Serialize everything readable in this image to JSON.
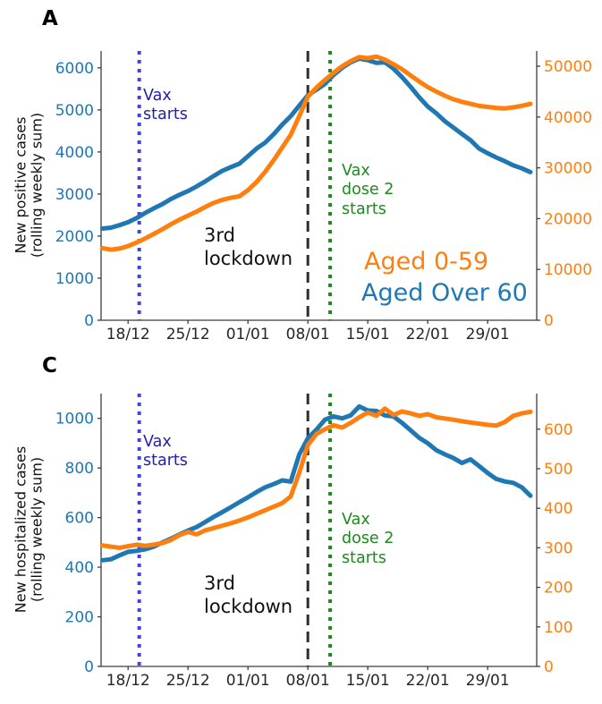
{
  "colors": {
    "series_blue": "#1f77b4",
    "series_orange": "#ff7f0e",
    "vax_line": "#4444e0",
    "vax_text": "#2222aa",
    "lockdown_line": "#2d2d2d",
    "lockdown_text": "#111111",
    "dose2_green": "#1d8a1d",
    "axis": "#3c3c3c",
    "xtick_text": "#262626"
  },
  "panels": [
    {
      "label": "A",
      "ylabel": "New positive cases\n(rolling weekly sum)",
      "annotations": {
        "vax_starts": "Vax\nstarts",
        "lockdown": "3rd\nlockdown",
        "vax_dose2": "Vax\ndose 2\nstarts",
        "legend": [
          {
            "text": "Aged 0-59",
            "color": "#ff7f0e"
          },
          {
            "text": "Aged Over 60",
            "color": "#1f77b4"
          }
        ]
      }
    },
    {
      "label": "C",
      "ylabel": "New hospitalized cases\n(rolling weekly sum)",
      "annotations": {
        "vax_starts": "Vax\nstarts",
        "lockdown": "3rd\nlockdown",
        "vax_dose2": "Vax\ndose 2\nstarts"
      }
    }
  ],
  "chart_data": [
    {
      "type": "line",
      "panel": "A",
      "ylabel_left": "New positive cases (rolling weekly sum)",
      "x_dates": [
        "15/12",
        "16/12",
        "17/12",
        "18/12",
        "19/12",
        "20/12",
        "21/12",
        "22/12",
        "23/12",
        "24/12",
        "25/12",
        "26/12",
        "27/12",
        "28/12",
        "29/12",
        "30/12",
        "31/12",
        "01/01",
        "02/01",
        "03/01",
        "04/01",
        "05/01",
        "06/01",
        "07/01",
        "08/01",
        "09/01",
        "10/01",
        "11/01",
        "12/01",
        "13/01",
        "14/01",
        "15/01",
        "16/01",
        "17/01",
        "18/01",
        "19/01",
        "20/01",
        "21/01",
        "22/01",
        "23/01",
        "24/01",
        "25/01",
        "26/01",
        "27/01",
        "28/01",
        "29/01",
        "30/01",
        "31/01",
        "01/02",
        "02/02",
        "03/02"
      ],
      "x_tick_labels": [
        "18/12",
        "25/12",
        "01/01",
        "08/01",
        "15/01",
        "22/01",
        "29/01"
      ],
      "x_tick_indices": [
        3,
        10,
        17,
        24,
        31,
        38,
        45
      ],
      "left_axis": {
        "ticks": [
          0,
          1000,
          2000,
          3000,
          4000,
          5000,
          6000
        ],
        "range": [
          0,
          6400
        ],
        "color": "#1f77b4"
      },
      "right_axis": {
        "ticks": [
          0,
          10000,
          20000,
          30000,
          40000,
          50000
        ],
        "range": [
          0,
          53000
        ],
        "color": "#ff7f0e"
      },
      "series": [
        {
          "name": "Aged Over 60",
          "axis": "left",
          "color": "#1f77b4",
          "values": [
            2180,
            2200,
            2260,
            2330,
            2430,
            2550,
            2660,
            2760,
            2880,
            2980,
            3070,
            3180,
            3300,
            3430,
            3550,
            3640,
            3720,
            3900,
            4080,
            4220,
            4420,
            4650,
            4850,
            5100,
            5350,
            5480,
            5620,
            5830,
            6000,
            6130,
            6220,
            6180,
            6120,
            6130,
            5980,
            5780,
            5550,
            5300,
            5080,
            4920,
            4730,
            4580,
            4430,
            4280,
            4080,
            3970,
            3870,
            3780,
            3680,
            3610,
            3520
          ]
        },
        {
          "name": "Aged 0-59",
          "axis": "right",
          "color": "#ff7f0e",
          "values": [
            14200,
            13900,
            14100,
            14600,
            15300,
            16100,
            17000,
            17900,
            18900,
            19800,
            20600,
            21400,
            22300,
            23100,
            23700,
            24100,
            24400,
            25600,
            27200,
            29200,
            31500,
            34000,
            36500,
            40200,
            44000,
            45800,
            47300,
            48700,
            50000,
            51000,
            51800,
            51600,
            51900,
            51300,
            50400,
            49400,
            48200,
            47000,
            45900,
            45000,
            44200,
            43500,
            43000,
            42600,
            42200,
            42000,
            41800,
            41700,
            41900,
            42200,
            42600
          ]
        }
      ],
      "vlines": [
        {
          "name": "vax-starts-line",
          "label": "Vax starts",
          "x_index": 4.3,
          "color": "#4444e0",
          "dash": "dotted"
        },
        {
          "name": "third-lockdown-line",
          "label": "3rd lockdown",
          "x_index": 24,
          "color": "#2d2d2d",
          "dash": "dashed"
        },
        {
          "name": "vax-dose2-line",
          "label": "Vax dose 2 starts",
          "x_index": 26.6,
          "color": "#1d8a1d",
          "dash": "dotted"
        }
      ],
      "legend_position": "lower right",
      "grid": false
    },
    {
      "type": "line",
      "panel": "C",
      "ylabel_left": "New hospitalized cases (rolling weekly sum)",
      "x_dates": [
        "15/12",
        "16/12",
        "17/12",
        "18/12",
        "19/12",
        "20/12",
        "21/12",
        "22/12",
        "23/12",
        "24/12",
        "25/12",
        "26/12",
        "27/12",
        "28/12",
        "29/12",
        "30/12",
        "31/12",
        "01/01",
        "02/01",
        "03/01",
        "04/01",
        "05/01",
        "06/01",
        "07/01",
        "08/01",
        "09/01",
        "10/01",
        "11/01",
        "12/01",
        "13/01",
        "14/01",
        "15/01",
        "16/01",
        "17/01",
        "18/01",
        "19/01",
        "20/01",
        "21/01",
        "22/01",
        "23/01",
        "24/01",
        "25/01",
        "26/01",
        "27/01",
        "28/01",
        "29/01",
        "30/01",
        "31/01",
        "01/02",
        "02/02",
        "03/02"
      ],
      "x_tick_labels": [
        "18/12",
        "25/12",
        "01/01",
        "08/01",
        "15/01",
        "22/01",
        "29/01"
      ],
      "x_tick_indices": [
        3,
        10,
        17,
        24,
        31,
        38,
        45
      ],
      "left_axis": {
        "ticks": [
          0,
          200,
          400,
          600,
          800,
          1000
        ],
        "range": [
          0,
          1100
        ],
        "color": "#1f77b4"
      },
      "right_axis": {
        "ticks": [
          0,
          100,
          200,
          300,
          400,
          500,
          600
        ],
        "range": [
          0,
          690
        ],
        "color": "#ff7f0e"
      },
      "series": [
        {
          "name": "Aged Over 60",
          "axis": "left",
          "color": "#1f77b4",
          "values": [
            428,
            432,
            448,
            462,
            466,
            472,
            483,
            500,
            515,
            532,
            548,
            562,
            582,
            603,
            622,
            642,
            662,
            682,
            703,
            722,
            735,
            750,
            745,
            855,
            920,
            955,
            995,
            1008,
            1000,
            1012,
            1048,
            1032,
            1030,
            1012,
            1008,
            982,
            952,
            922,
            900,
            872,
            855,
            840,
            820,
            835,
            808,
            780,
            756,
            746,
            740,
            722,
            688
          ]
        },
        {
          "name": "Aged 0-59",
          "axis": "right",
          "color": "#ff7f0e",
          "values": [
            306,
            303,
            300,
            304,
            308,
            305,
            308,
            312,
            320,
            332,
            340,
            334,
            344,
            350,
            356,
            362,
            369,
            377,
            386,
            395,
            404,
            413,
            430,
            490,
            560,
            588,
            600,
            610,
            604,
            616,
            630,
            642,
            634,
            652,
            636,
            645,
            640,
            634,
            638,
            630,
            627,
            624,
            620,
            617,
            614,
            611,
            609,
            618,
            634,
            640,
            644
          ]
        }
      ],
      "vlines": [
        {
          "name": "vax-starts-line",
          "label": "Vax starts",
          "x_index": 4.3,
          "color": "#4444e0",
          "dash": "dotted"
        },
        {
          "name": "third-lockdown-line",
          "label": "3rd lockdown",
          "x_index": 24,
          "color": "#2d2d2d",
          "dash": "dashed"
        },
        {
          "name": "vax-dose2-line",
          "label": "Vax dose 2 starts",
          "x_index": 26.6,
          "color": "#1d8a1d",
          "dash": "dotted"
        }
      ],
      "grid": false
    }
  ]
}
